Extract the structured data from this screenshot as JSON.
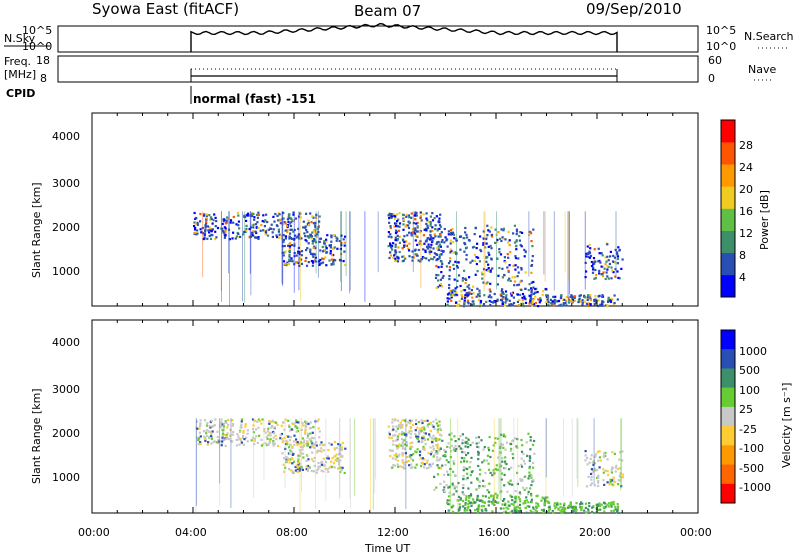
{
  "header": {
    "station": "Syowa East (fitACF)",
    "beam": "Beam 07",
    "date": "09/Sep/2010"
  },
  "nsky_panel": {
    "label": "N.Sky",
    "left_ticks": [
      "10^5",
      "10^0"
    ],
    "right_ticks": [
      "10^5",
      "10^0"
    ],
    "right_label": "N.Search"
  },
  "freq_panel": {
    "label_line1": "Freq.",
    "label_line2": "[MHz]",
    "left_ticks": [
      "18",
      "8"
    ],
    "right_ticks": [
      "60",
      "0"
    ],
    "right_label": "Nave"
  },
  "cpid_panel": {
    "label": "CPID",
    "mode": "normal (fast) -151"
  },
  "colors": {
    "power": [
      "#0000ff",
      "#2a4fb4",
      "#3d8f6a",
      "#60c045",
      "#f0cc20",
      "#ff9900",
      "#ff5500",
      "#ff0000"
    ],
    "velocity": [
      "#ff0000",
      "#ff6600",
      "#ff9900",
      "#ffcc33",
      "#c8c8c8",
      "#66cc33",
      "#3d8f6a",
      "#2a4fb4",
      "#0000ff"
    ]
  },
  "chart_data": [
    {
      "type": "heatmap",
      "quantity": "power",
      "ylabel": "Slant Range [km]",
      "xlabel": "",
      "ylim": [
        180,
        4500
      ],
      "yticks": [
        "1000",
        "2000",
        "3000",
        "4000"
      ],
      "xlim_hours": [
        0,
        24
      ],
      "xticks": [
        "00:00",
        "04:00",
        "08:00",
        "12:00",
        "16:00",
        "20:00",
        "00:00"
      ],
      "colorbar": {
        "label": "Power [dB]",
        "ticks": [
          "4",
          "8",
          "12",
          "16",
          "20",
          "24",
          "28"
        ]
      }
    },
    {
      "type": "heatmap",
      "quantity": "velocity",
      "ylabel": "Slant Range [km]",
      "xlabel": "Time UT",
      "ylim": [
        180,
        4500
      ],
      "yticks": [
        "1000",
        "2000",
        "3000",
        "4000"
      ],
      "xlim_hours": [
        0,
        24
      ],
      "xticks": [
        "00:00",
        "04:00",
        "08:00",
        "12:00",
        "16:00",
        "20:00",
        "00:00"
      ],
      "colorbar": {
        "label": "Velocity [m s⁻¹]",
        "ticks": [
          "1000",
          "500",
          "100",
          "25",
          "-25",
          "-100",
          "-500",
          "-1000"
        ]
      }
    }
  ]
}
